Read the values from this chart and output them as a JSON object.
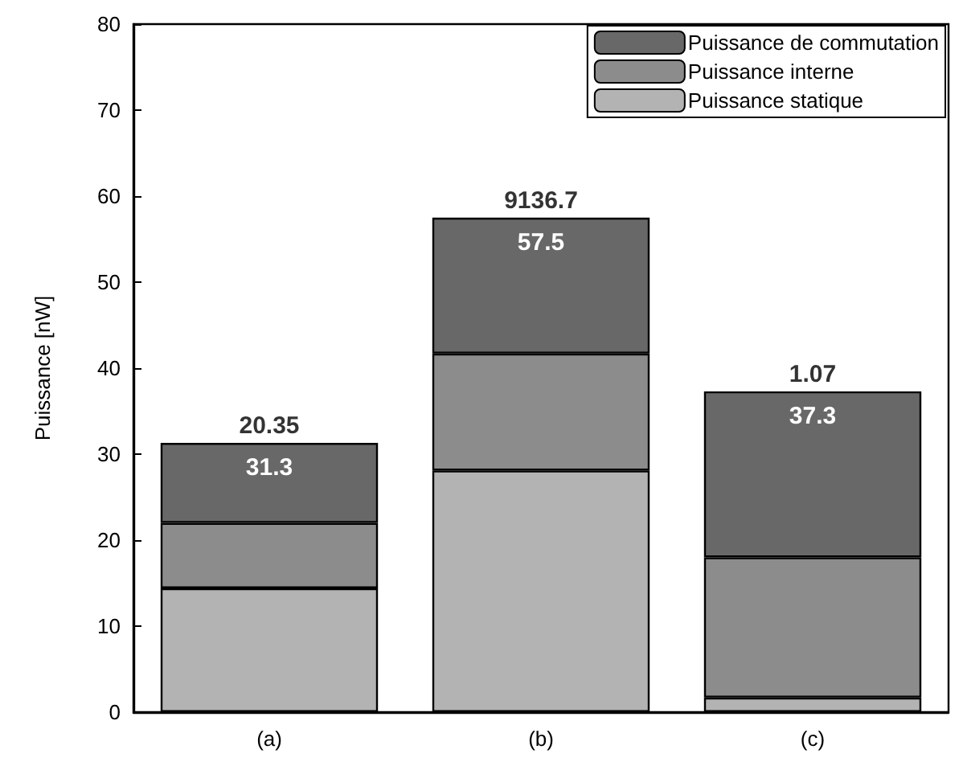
{
  "chart_data": {
    "type": "bar",
    "stacked": true,
    "ylabel": "Puissance [nW]",
    "categories": [
      "(a)",
      "(b)",
      "(c)"
    ],
    "series": [
      {
        "name": "Puissance statique",
        "color": "#b3b3b3",
        "values": [
          14.4,
          28.1,
          1.7
        ]
      },
      {
        "name": "Puissance interne",
        "color": "#8c8c8c",
        "values": [
          7.6,
          13.6,
          16.3
        ]
      },
      {
        "name": "Puissance de commutation",
        "color": "#686868",
        "values": [
          9.3,
          15.8,
          19.3
        ]
      }
    ],
    "totals": [
      "31.3",
      "57.5",
      "37.3"
    ],
    "annotations": [
      {
        "text": "20.35",
        "x": "(a)",
        "y": 31.3
      },
      {
        "text": "9136.7",
        "x": "(b)",
        "y": 57.5
      },
      {
        "text": "1.07",
        "x": "(c)",
        "y": 37.3
      }
    ],
    "ylim": [
      0,
      80
    ],
    "yticks": [
      0,
      10,
      20,
      30,
      40,
      50,
      60,
      70,
      80
    ],
    "grid": false,
    "legend": "top right"
  }
}
